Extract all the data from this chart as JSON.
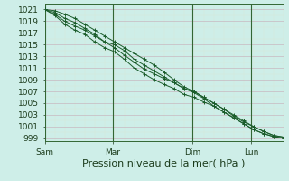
{
  "xlabel": "Pression niveau de la mer( hPa )",
  "background_color": "#ceeee8",
  "grid_color_major": "#c8b8c8",
  "grid_color_minor": "#ddeedd",
  "line_color": "#1a5c2a",
  "vline_color": "#336633",
  "ylim": [
    998.5,
    1022
  ],
  "yticks": [
    999,
    1001,
    1003,
    1005,
    1007,
    1009,
    1011,
    1013,
    1015,
    1017,
    1019,
    1021
  ],
  "xtick_labels": [
    "Sam",
    "Mar",
    "Dim",
    "Lun"
  ],
  "xtick_positions": [
    0.0,
    0.285,
    0.62,
    0.865
  ],
  "vline_positions": [
    0.0,
    0.285,
    0.62,
    0.865
  ],
  "series": [
    [
      1021.0,
      1020.8,
      1020.2,
      1019.5,
      1018.5,
      1017.5,
      1016.5,
      1015.5,
      1014.5,
      1013.5,
      1012.5,
      1011.5,
      1010.3,
      1009.0,
      1007.8,
      1007.0,
      1006.0,
      1005.0,
      1004.0,
      1003.0,
      1002.0,
      1001.0,
      1000.2,
      999.5,
      999.2
    ],
    [
      1021.0,
      1020.5,
      1019.5,
      1018.8,
      1017.8,
      1016.8,
      1015.5,
      1014.5,
      1013.2,
      1012.0,
      1010.8,
      1010.0,
      1009.2,
      1008.5,
      1007.5,
      1006.8,
      1005.8,
      1004.5,
      1003.5,
      1002.5,
      1001.5,
      1000.5,
      999.8,
      999.3,
      999.0
    ],
    [
      1021.0,
      1020.2,
      1019.0,
      1018.2,
      1017.5,
      1016.5,
      1015.5,
      1015.0,
      1014.0,
      1012.5,
      1011.5,
      1010.5,
      1009.5,
      1008.5,
      1007.5,
      1007.0,
      1006.0,
      1005.0,
      1004.0,
      1002.8,
      1001.8,
      1001.0,
      1000.2,
      999.5,
      999.2
    ],
    [
      1021.0,
      1020.0,
      1018.5,
      1017.5,
      1016.8,
      1015.5,
      1014.5,
      1013.8,
      1012.5,
      1011.0,
      1010.0,
      1009.0,
      1008.2,
      1007.5,
      1006.5,
      1006.0,
      1005.2,
      1004.5,
      1003.5,
      1002.5,
      1001.5,
      1000.5,
      999.8,
      999.3,
      999.0
    ]
  ],
  "xlabel_fontsize": 8,
  "tick_fontsize": 6.5
}
